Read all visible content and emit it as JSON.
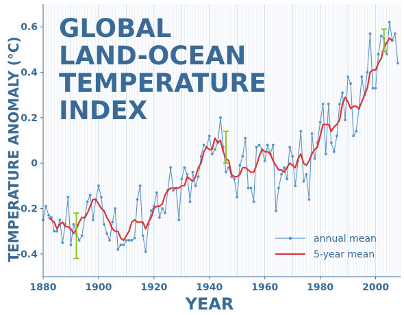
{
  "chart_data": {
    "type": "line",
    "title_lines": [
      "GLOBAL",
      "LAND-OCEAN",
      "TEMPERATURE",
      "INDEX"
    ],
    "xlabel": "YEAR",
    "ylabel": "TEMPERATURE ANOMALY (°C)",
    "xlim": [
      1880,
      2009
    ],
    "ylim": [
      -0.5,
      0.7
    ],
    "xticks": [
      1880,
      1900,
      1920,
      1940,
      1960,
      1980,
      2000
    ],
    "yticks": [
      -0.4,
      -0.2,
      0,
      0.2,
      0.4,
      0.6
    ],
    "grid": "vertical-years",
    "legend_position": "bottom-right",
    "colors": {
      "annual": "#5b93c7",
      "five_year": "#e03131",
      "error_bar": "#8fc21f",
      "text": "#3a6a96",
      "grid": "#c6d6e4"
    },
    "series": [
      {
        "name": "annual mean",
        "x": [
          1880,
          1881,
          1882,
          1883,
          1884,
          1885,
          1886,
          1887,
          1888,
          1889,
          1890,
          1891,
          1892,
          1893,
          1894,
          1895,
          1896,
          1897,
          1898,
          1899,
          1900,
          1901,
          1902,
          1903,
          1904,
          1905,
          1906,
          1907,
          1908,
          1909,
          1910,
          1911,
          1912,
          1913,
          1914,
          1915,
          1916,
          1917,
          1918,
          1919,
          1920,
          1921,
          1922,
          1923,
          1924,
          1925,
          1926,
          1927,
          1928,
          1929,
          1930,
          1931,
          1932,
          1933,
          1934,
          1935,
          1936,
          1937,
          1938,
          1939,
          1940,
          1941,
          1942,
          1943,
          1944,
          1945,
          1946,
          1947,
          1948,
          1949,
          1950,
          1951,
          1952,
          1953,
          1954,
          1955,
          1956,
          1957,
          1958,
          1959,
          1960,
          1961,
          1962,
          1963,
          1964,
          1965,
          1966,
          1967,
          1968,
          1969,
          1970,
          1971,
          1972,
          1973,
          1974,
          1975,
          1976,
          1977,
          1978,
          1979,
          1980,
          1981,
          1982,
          1983,
          1984,
          1985,
          1986,
          1987,
          1988,
          1989,
          1990,
          1991,
          1992,
          1993,
          1994,
          1995,
          1996,
          1997,
          1998,
          1999,
          2000,
          2001,
          2002,
          2003,
          2004,
          2005,
          2006,
          2007,
          2008
        ],
        "values": [
          -0.25,
          -0.19,
          -0.23,
          -0.24,
          -0.3,
          -0.3,
          -0.25,
          -0.35,
          -0.27,
          -0.15,
          -0.36,
          -0.27,
          -0.31,
          -0.34,
          -0.32,
          -0.24,
          -0.17,
          -0.14,
          -0.25,
          -0.16,
          -0.1,
          -0.15,
          -0.27,
          -0.31,
          -0.34,
          -0.26,
          -0.2,
          -0.38,
          -0.36,
          -0.36,
          -0.34,
          -0.34,
          -0.34,
          -0.33,
          -0.16,
          -0.1,
          -0.32,
          -0.39,
          -0.27,
          -0.21,
          -0.19,
          -0.13,
          -0.24,
          -0.2,
          -0.22,
          -0.12,
          -0.02,
          -0.12,
          -0.11,
          -0.25,
          -0.07,
          -0.02,
          -0.05,
          -0.17,
          -0.04,
          -0.1,
          -0.06,
          0.03,
          0.08,
          0.07,
          0.12,
          0.04,
          0.06,
          0.09,
          0.2,
          0.07,
          -0.04,
          -0.02,
          -0.06,
          -0.07,
          -0.15,
          -0.01,
          0.03,
          0.11,
          -0.11,
          -0.11,
          -0.17,
          0.07,
          0.08,
          0.06,
          0.01,
          0.08,
          0.04,
          0.08,
          -0.21,
          -0.11,
          -0.05,
          -0.02,
          -0.07,
          0.07,
          0.03,
          -0.1,
          0.01,
          0.14,
          -0.08,
          -0.05,
          -0.16,
          0.13,
          0.02,
          0.09,
          0.18,
          0.26,
          0.04,
          0.26,
          0.09,
          0.05,
          0.12,
          0.26,
          0.31,
          0.19,
          0.38,
          0.35,
          0.12,
          0.14,
          0.24,
          0.38,
          0.3,
          0.4,
          0.57,
          0.33,
          0.33,
          0.48,
          0.56,
          0.55,
          0.48,
          0.62,
          0.54,
          0.57,
          0.44
        ]
      },
      {
        "name": "5-year mean",
        "x": [
          1882,
          1883,
          1884,
          1885,
          1886,
          1887,
          1888,
          1889,
          1890,
          1891,
          1892,
          1893,
          1894,
          1895,
          1896,
          1897,
          1898,
          1899,
          1900,
          1901,
          1902,
          1903,
          1904,
          1905,
          1906,
          1907,
          1908,
          1909,
          1910,
          1911,
          1912,
          1913,
          1914,
          1915,
          1916,
          1917,
          1918,
          1919,
          1920,
          1921,
          1922,
          1923,
          1924,
          1925,
          1926,
          1927,
          1928,
          1929,
          1930,
          1931,
          1932,
          1933,
          1934,
          1935,
          1936,
          1937,
          1938,
          1939,
          1940,
          1941,
          1942,
          1943,
          1944,
          1945,
          1946,
          1947,
          1948,
          1949,
          1950,
          1951,
          1952,
          1953,
          1954,
          1955,
          1956,
          1957,
          1958,
          1959,
          1960,
          1961,
          1962,
          1963,
          1964,
          1965,
          1966,
          1967,
          1968,
          1969,
          1970,
          1971,
          1972,
          1973,
          1974,
          1975,
          1976,
          1977,
          1978,
          1979,
          1980,
          1981,
          1982,
          1983,
          1984,
          1985,
          1986,
          1987,
          1988,
          1989,
          1990,
          1991,
          1992,
          1993,
          1994,
          1995,
          1996,
          1997,
          1998,
          1999,
          2000,
          2001,
          2002,
          2003,
          2004,
          2005,
          2006
        ],
        "values": [
          -0.24,
          -0.25,
          -0.26,
          -0.29,
          -0.27,
          -0.26,
          -0.28,
          -0.28,
          -0.29,
          -0.31,
          -0.29,
          -0.26,
          -0.24,
          -0.24,
          -0.22,
          -0.19,
          -0.16,
          -0.16,
          -0.18,
          -0.2,
          -0.21,
          -0.24,
          -0.26,
          -0.29,
          -0.3,
          -0.3,
          -0.33,
          -0.34,
          -0.32,
          -0.3,
          -0.26,
          -0.25,
          -0.26,
          -0.26,
          -0.26,
          -0.29,
          -0.26,
          -0.24,
          -0.2,
          -0.19,
          -0.19,
          -0.18,
          -0.14,
          -0.12,
          -0.11,
          -0.11,
          -0.11,
          -0.11,
          -0.1,
          -0.1,
          -0.06,
          -0.07,
          -0.08,
          -0.06,
          -0.02,
          0.0,
          0.05,
          0.07,
          0.06,
          0.06,
          0.11,
          0.09,
          0.1,
          0.05,
          0.02,
          0.01,
          -0.05,
          -0.06,
          -0.06,
          -0.05,
          -0.02,
          -0.02,
          -0.03,
          -0.04,
          -0.04,
          -0.01,
          0.03,
          0.06,
          0.05,
          0.05,
          0.04,
          0.01,
          -0.01,
          -0.03,
          -0.03,
          -0.04,
          -0.02,
          0.0,
          -0.01,
          -0.02,
          0.02,
          0.04,
          0.0,
          -0.01,
          0.01,
          0.04,
          0.06,
          0.07,
          0.12,
          0.17,
          0.17,
          0.17,
          0.14,
          0.16,
          0.17,
          0.19,
          0.26,
          0.29,
          0.27,
          0.24,
          0.25,
          0.25,
          0.24,
          0.27,
          0.3,
          0.33,
          0.4,
          0.41,
          0.41,
          0.44,
          0.46,
          0.51,
          0.53,
          0.55,
          0.54
        ]
      }
    ],
    "error_bars": [
      {
        "x": 1892,
        "low": -0.42,
        "high": -0.22
      },
      {
        "x": 1946,
        "low": 0.0,
        "high": 0.14
      },
      {
        "x": 2003,
        "low": 0.49,
        "high": 0.59
      }
    ]
  }
}
